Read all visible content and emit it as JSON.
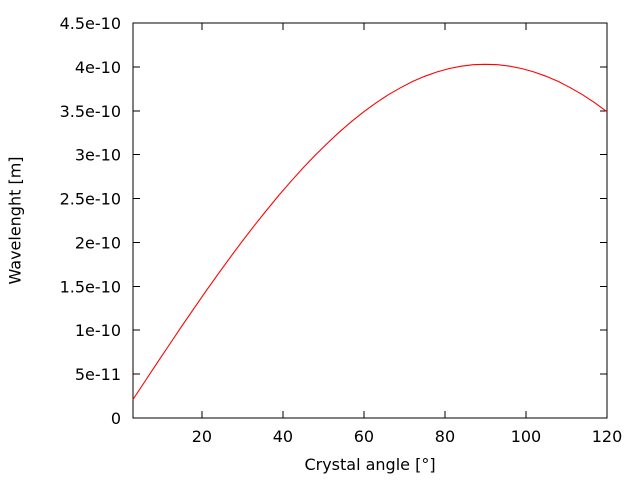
{
  "chart_data": {
    "type": "line",
    "title": "",
    "xlabel": "Crystal angle [°]",
    "ylabel": "Wavelenght [m]",
    "xlim": [
      3,
      120
    ],
    "ylim": [
      0,
      4.5e-10
    ],
    "grid": false,
    "legend": false,
    "background_color": "#ffffff",
    "axis_color": "#000000",
    "curve_color": "#ff0000",
    "xticks": {
      "values": [
        20,
        40,
        60,
        80,
        100,
        120
      ],
      "labels": [
        "20",
        "40",
        "60",
        "80",
        "100",
        "120"
      ]
    },
    "yticks": {
      "values": [
        0,
        5e-11,
        1e-10,
        1.5e-10,
        2e-10,
        2.5e-10,
        3e-10,
        3.5e-10,
        4e-10,
        4.5e-10
      ],
      "labels": [
        "0",
        "5e-11",
        "1e-10",
        "1.5e-10",
        "2e-10",
        "2.5e-10",
        "3e-10",
        "3.5e-10",
        "4e-10",
        "4.5e-10"
      ]
    },
    "series": [
      {
        "name": "",
        "x": [
          3,
          6,
          9,
          12,
          15,
          18,
          21,
          24,
          27,
          30,
          33,
          36,
          39,
          42,
          45,
          48,
          51,
          54,
          57,
          60,
          63,
          66,
          69,
          72,
          75,
          78,
          81,
          84,
          87,
          90,
          93,
          96,
          99,
          102,
          105,
          108,
          111,
          114,
          117,
          120
        ],
        "y": [
          2.109e-11,
          4.213e-11,
          6.304e-11,
          8.379e-11,
          1.043e-10,
          1.245e-10,
          1.444e-10,
          1.639e-10,
          1.83e-10,
          2.015e-10,
          2.195e-10,
          2.369e-10,
          2.536e-10,
          2.697e-10,
          2.85e-10,
          2.995e-10,
          3.132e-10,
          3.26e-10,
          3.38e-10,
          3.49e-10,
          3.591e-10,
          3.682e-10,
          3.762e-10,
          3.833e-10,
          3.893e-10,
          3.942e-10,
          3.98e-10,
          4.008e-10,
          4.025e-10,
          4.03e-10,
          4.025e-10,
          4.008e-10,
          3.98e-10,
          3.942e-10,
          3.893e-10,
          3.833e-10,
          3.762e-10,
          3.682e-10,
          3.591e-10,
          3.49e-10
        ]
      }
    ]
  }
}
